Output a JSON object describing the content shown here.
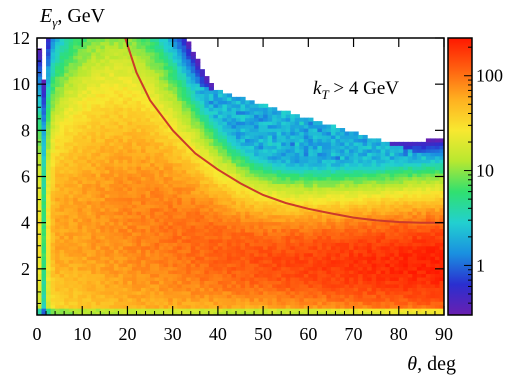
{
  "chart_data": {
    "type": "heatmap",
    "title": "",
    "xlabel": "θ, deg",
    "ylabel": "E_γ, GeV",
    "ylabel_parts": {
      "main": "E",
      "sub": "γ",
      "unit": ", GeV"
    },
    "xlabel_parts": {
      "main": "θ",
      "unit": ", deg"
    },
    "xlim": [
      0,
      90
    ],
    "ylim": [
      0,
      12
    ],
    "xticks": [
      0,
      10,
      20,
      30,
      40,
      50,
      60,
      70,
      80,
      90
    ],
    "yticks": [
      2,
      4,
      6,
      8,
      10,
      12
    ],
    "zscale": "log",
    "zlim": [
      0.3,
      250
    ],
    "colorbar_ticks": [
      {
        "value": 1,
        "label": "1"
      },
      {
        "value": 10,
        "label": "10"
      },
      {
        "value": 100,
        "label": "100"
      }
    ],
    "colormap": [
      "#6a1fb0",
      "#2a2fd0",
      "#1a90e0",
      "#22d0d0",
      "#30e070",
      "#b8e830",
      "#f8e830",
      "#ffb020",
      "#ff6010",
      "#ff1800"
    ],
    "annotation": {
      "main": "k",
      "sub": "T",
      "rest": " > 4 GeV"
    },
    "cut_curve": {
      "color": "#cc3a2a",
      "description": "kinematic cut boundary",
      "points": [
        [
          19.5,
          12.0
        ],
        [
          22,
          10.5
        ],
        [
          25,
          9.3
        ],
        [
          30,
          8.0
        ],
        [
          35,
          7.0
        ],
        [
          40,
          6.3
        ],
        [
          45,
          5.7
        ],
        [
          50,
          5.2
        ],
        [
          55,
          4.85
        ],
        [
          60,
          4.6
        ],
        [
          65,
          4.4
        ],
        [
          70,
          4.22
        ],
        [
          75,
          4.1
        ],
        [
          80,
          4.03
        ],
        [
          85,
          4.0
        ],
        [
          90,
          4.0
        ]
      ]
    }
  }
}
